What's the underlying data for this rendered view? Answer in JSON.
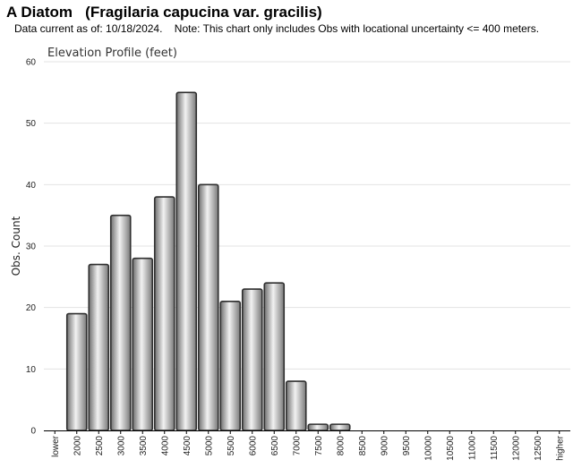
{
  "header": {
    "title": "A Diatom   (Fragilaria capucina var. gracilis)",
    "subtitle": "Data current as of: 10/18/2024.    Note: This chart only includes Obs with locational uncertainty <= 400 meters."
  },
  "chart_data": {
    "type": "bar",
    "title": "Elevation Profile (feet)",
    "xlabel": "",
    "ylabel": "Obs. Count",
    "ylim": [
      0,
      60
    ],
    "yticks": [
      0,
      10,
      20,
      30,
      40,
      50,
      60
    ],
    "grid": true,
    "categories": [
      "lower",
      "2000",
      "2500",
      "3000",
      "3500",
      "4000",
      "4500",
      "5000",
      "5500",
      "6000",
      "6500",
      "7000",
      "7500",
      "8000",
      "8500",
      "9000",
      "9500",
      "10000",
      "10500",
      "11000",
      "11500",
      "12000",
      "12500",
      "higher"
    ],
    "values": [
      0,
      19,
      27,
      35,
      28,
      38,
      55,
      40,
      21,
      23,
      24,
      8,
      1,
      1,
      0,
      0,
      0,
      0,
      0,
      0,
      0,
      0,
      0,
      0
    ],
    "bar_color": "#b8b8b8"
  }
}
